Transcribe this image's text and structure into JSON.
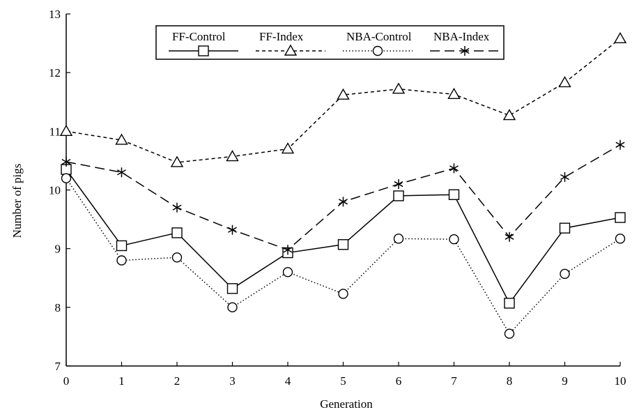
{
  "chart_data": {
    "type": "line",
    "title": "",
    "xlabel": "Generation",
    "ylabel": "Number of pigs",
    "xlim": [
      0,
      10
    ],
    "ylim": [
      7,
      13
    ],
    "x_ticks": [
      0,
      1,
      2,
      3,
      4,
      5,
      6,
      7,
      8,
      9,
      10
    ],
    "y_ticks": [
      7,
      8,
      9,
      10,
      11,
      12,
      13
    ],
    "grid": false,
    "legend_position": "top-center",
    "x": [
      0,
      1,
      2,
      3,
      4,
      5,
      6,
      7,
      8,
      9,
      10
    ],
    "series": [
      {
        "name": "FF-Control",
        "line_style": "solid",
        "marker": "square",
        "values": [
          10.35,
          9.05,
          9.27,
          8.32,
          8.93,
          9.07,
          9.9,
          9.92,
          8.07,
          9.35,
          9.53
        ]
      },
      {
        "name": "FF-Index",
        "line_style": "dashed",
        "marker": "triangle",
        "values": [
          11.0,
          10.85,
          10.47,
          10.57,
          10.7,
          11.62,
          11.72,
          11.63,
          11.27,
          11.83,
          12.58
        ]
      },
      {
        "name": "NBA-Control",
        "line_style": "dotted",
        "marker": "circle",
        "values": [
          10.2,
          8.8,
          8.85,
          8.0,
          8.6,
          8.23,
          9.17,
          9.16,
          7.55,
          8.57,
          9.17
        ]
      },
      {
        "name": "NBA-Index",
        "line_style": "long-dash",
        "marker": "asterisk",
        "values": [
          10.48,
          10.3,
          9.7,
          9.32,
          8.98,
          9.8,
          10.1,
          10.37,
          9.2,
          10.22,
          10.77
        ]
      }
    ]
  }
}
